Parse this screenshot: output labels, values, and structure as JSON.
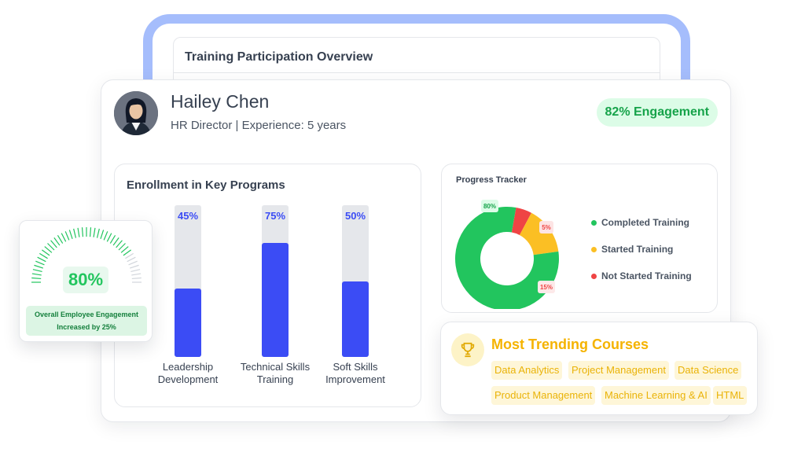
{
  "overview": {
    "title": "Training Participation Overview"
  },
  "profile": {
    "name": "Hailey Chen",
    "role": "HR Director | Experience: 5 years",
    "engagement": "82% Engagement"
  },
  "enrollment": {
    "title": "Enrollment in Key Programs",
    "programs": [
      {
        "pct_label": "45%",
        "value": 45,
        "label_line1": "Leadership",
        "label_line2": "Development"
      },
      {
        "pct_label": "75%",
        "value": 75,
        "label_line1": "Technical Skills",
        "label_line2": "Training"
      },
      {
        "pct_label": "50%",
        "value": 50,
        "label_line1": "Soft Skills",
        "label_line2": "Improvement"
      }
    ],
    "bar_color": "#3b4cf5",
    "track_color": "#e5e7eb"
  },
  "progress": {
    "title": "Progress Tracker",
    "legend": [
      {
        "label": "Completed Training",
        "color": "#22c55e"
      },
      {
        "label": "Started Training",
        "color": "#fbbf24"
      },
      {
        "label": "Not Started Training",
        "color": "#ef4444"
      }
    ]
  },
  "chart_data": {
    "type": "pie",
    "title": "Progress Tracker",
    "categories": [
      "Completed Training",
      "Started Training",
      "Not Started Training"
    ],
    "values": [
      80,
      15,
      5
    ],
    "labels": [
      "80%",
      "15%",
      "5%"
    ],
    "colors": [
      "#22c55e",
      "#fbbf24",
      "#ef4444"
    ],
    "donut": true,
    "legend": "right"
  },
  "gauge": {
    "value_label": "80%",
    "value": 80,
    "note_line1": "Overall Employee Engagement",
    "note_line2": "Increased by 25%",
    "color": "#22c55e"
  },
  "trending": {
    "title": "Most Trending Courses",
    "icon": "trophy-icon",
    "courses": [
      "Data Analytics",
      "Project Management",
      "Data Science",
      "Product Management",
      "Machine Learning & AI",
      "HTML"
    ]
  }
}
